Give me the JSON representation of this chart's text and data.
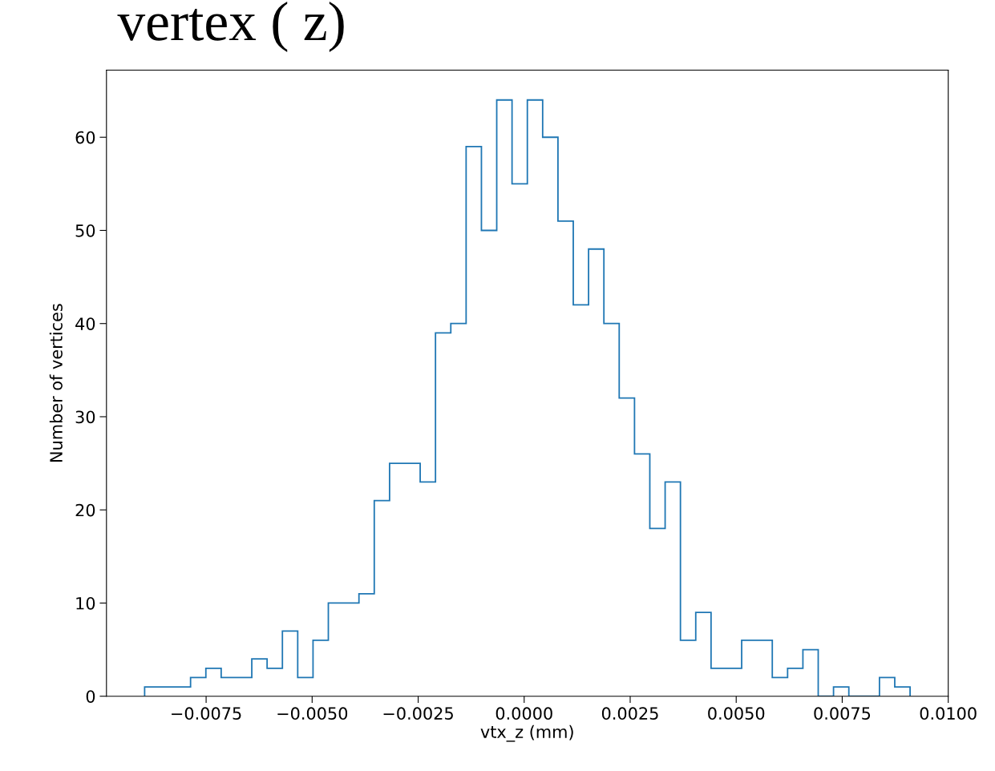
{
  "chart_data": {
    "type": "histogram",
    "title": "vertex ( z)",
    "xlabel": "vtx_z (mm)",
    "ylabel": "Number of vertices",
    "bins": [
      -0.00895,
      -0.008589,
      -0.008228,
      -0.007867,
      -0.007506,
      -0.007145,
      -0.006784,
      -0.006423,
      -0.006062,
      -0.005701,
      -0.00534,
      -0.004979,
      -0.004618,
      -0.004257,
      -0.003896,
      -0.003535,
      -0.003174,
      -0.002813,
      -0.002452,
      -0.002091,
      -0.00173,
      -0.001369,
      -0.001008,
      -0.000647,
      -0.000286,
      7.5e-05,
      0.000436,
      0.000797,
      0.001158,
      0.001519,
      0.00188,
      0.002241,
      0.002602,
      0.002963,
      0.003324,
      0.003685,
      0.004046,
      0.004407,
      0.004768,
      0.005129,
      0.00549,
      0.005851,
      0.006212,
      0.006573,
      0.006934,
      0.007295,
      0.007656,
      0.008017,
      0.008378,
      0.008739,
      0.0091
    ],
    "values": [
      1,
      1,
      1,
      2,
      3,
      2,
      2,
      4,
      3,
      7,
      2,
      6,
      10,
      10,
      11,
      21,
      25,
      25,
      23,
      39,
      40,
      59,
      50,
      64,
      55,
      64,
      60,
      51,
      42,
      48,
      40,
      32,
      26,
      18,
      23,
      6,
      9,
      3,
      3,
      6,
      6,
      2,
      3,
      5,
      0,
      1,
      0,
      0,
      2,
      1
    ],
    "color": "#1f77b4",
    "xlim": [
      -0.00985,
      0.01
    ],
    "xticks": [
      {
        "value": -0.0075,
        "label": "−0.0075"
      },
      {
        "value": -0.005,
        "label": "−0.0050"
      },
      {
        "value": -0.0025,
        "label": "−0.0025"
      },
      {
        "value": 0,
        "label": "0.0000"
      },
      {
        "value": 0.0025,
        "label": "0.0025"
      },
      {
        "value": 0.005,
        "label": "0.0050"
      },
      {
        "value": 0.0075,
        "label": "0.0075"
      },
      {
        "value": 0.01,
        "label": "0.0100"
      }
    ],
    "ylim": [
      0,
      67.2
    ],
    "yticks": [
      0,
      10,
      20,
      30,
      40,
      50,
      60
    ],
    "grid": false
  }
}
